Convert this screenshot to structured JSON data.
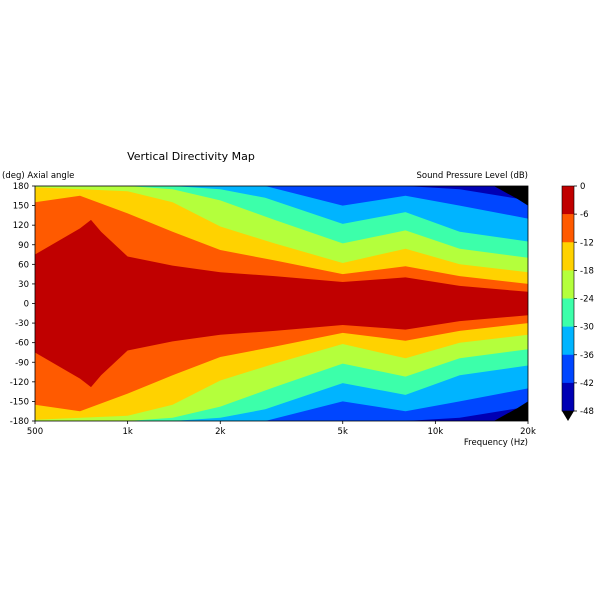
{
  "chart_data": {
    "type": "heatmap",
    "title": "Vertical Directivity Map",
    "xlabel": "Frequency (Hz)",
    "ylabel": "(deg) Axial angle",
    "x_scale": "log",
    "xlim": [
      500,
      20000
    ],
    "ylim": [
      -180,
      180
    ],
    "x_ticks": [
      {
        "value": 500,
        "label": "500"
      },
      {
        "value": 1000,
        "label": "1k"
      },
      {
        "value": 2000,
        "label": "2k"
      },
      {
        "value": 5000,
        "label": "5k"
      },
      {
        "value": 10000,
        "label": "10k"
      },
      {
        "value": 20000,
        "label": "20k"
      }
    ],
    "y_ticks": [
      180,
      150,
      120,
      90,
      60,
      30,
      0,
      -30,
      -60,
      -90,
      -120,
      -150,
      -180
    ],
    "colorbar": {
      "label": "Sound Pressure Level (dB)",
      "levels": [
        0,
        -6,
        -12,
        -18,
        -24,
        -30,
        -36,
        -42,
        -48
      ],
      "colors": [
        "#c00000",
        "#ff5a00",
        "#ffd200",
        "#b4ff3c",
        "#3cffaa",
        "#00b4ff",
        "#0046ff",
        "#0000b4"
      ],
      "under_color": "#000000",
      "extend": "min"
    },
    "contour_boundaries": [
      {
        "level": -6,
        "freq": [
          500,
          700,
          760,
          820,
          1000,
          1400,
          2000,
          3000,
          5000,
          8000,
          12000,
          20000
        ],
        "angle": [
          75,
          115,
          128,
          110,
          72,
          58,
          48,
          42,
          33,
          40,
          27,
          18
        ]
      },
      {
        "level": -12,
        "freq": [
          500,
          700,
          1000,
          1400,
          2000,
          3000,
          5000,
          8000,
          12000,
          20000
        ],
        "angle": [
          155,
          165,
          138,
          110,
          82,
          66,
          45,
          57,
          42,
          30
        ]
      },
      {
        "level": -18,
        "freq": [
          500,
          1000,
          1400,
          2000,
          3000,
          5000,
          8000,
          12000,
          20000
        ],
        "angle": [
          178,
          172,
          155,
          118,
          92,
          62,
          84,
          60,
          48
        ]
      },
      {
        "level": -24,
        "freq": [
          500,
          1000,
          1400,
          2000,
          3000,
          5000,
          8000,
          12000,
          20000
        ],
        "angle": [
          180,
          180,
          175,
          158,
          128,
          92,
          112,
          84,
          70
        ]
      },
      {
        "level": -30,
        "freq": [
          500,
          1400,
          2000,
          2800,
          5000,
          8000,
          12000,
          20000
        ],
        "angle": [
          180,
          180,
          175,
          162,
          122,
          140,
          110,
          95
        ]
      },
      {
        "level": -36,
        "freq": [
          500,
          2800,
          5000,
          8000,
          12000,
          20000
        ],
        "angle": [
          180,
          180,
          150,
          165,
          150,
          130
        ]
      },
      {
        "level": -42,
        "freq": [
          500,
          5000,
          8000,
          12000,
          20000
        ],
        "angle": [
          180,
          180,
          180,
          175,
          158
        ]
      }
    ]
  }
}
